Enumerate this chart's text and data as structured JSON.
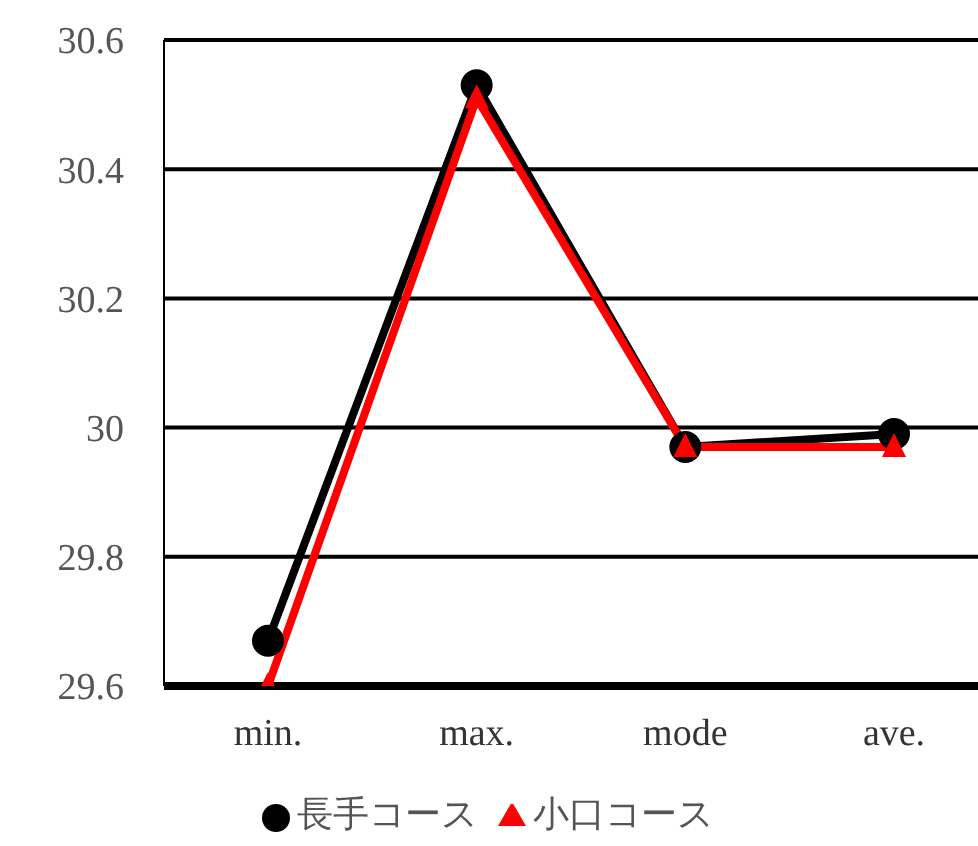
{
  "chart_data": {
    "type": "line",
    "categories": [
      "min.",
      "max.",
      "mode",
      "ave."
    ],
    "series": [
      {
        "name": "長手コース",
        "color": "#000000",
        "marker": "circle",
        "values": [
          29.67,
          30.53,
          29.97,
          29.99
        ]
      },
      {
        "name": "小口コース",
        "color": "#ff0000",
        "marker": "triangle",
        "values": [
          29.6,
          30.51,
          29.97,
          29.97
        ]
      }
    ],
    "ylim": [
      29.6,
      30.6
    ],
    "yticks": [
      29.6,
      29.8,
      30,
      30.2,
      30.4,
      30.6
    ],
    "grid": "y",
    "legend": "bottom",
    "line_style": "solid"
  }
}
